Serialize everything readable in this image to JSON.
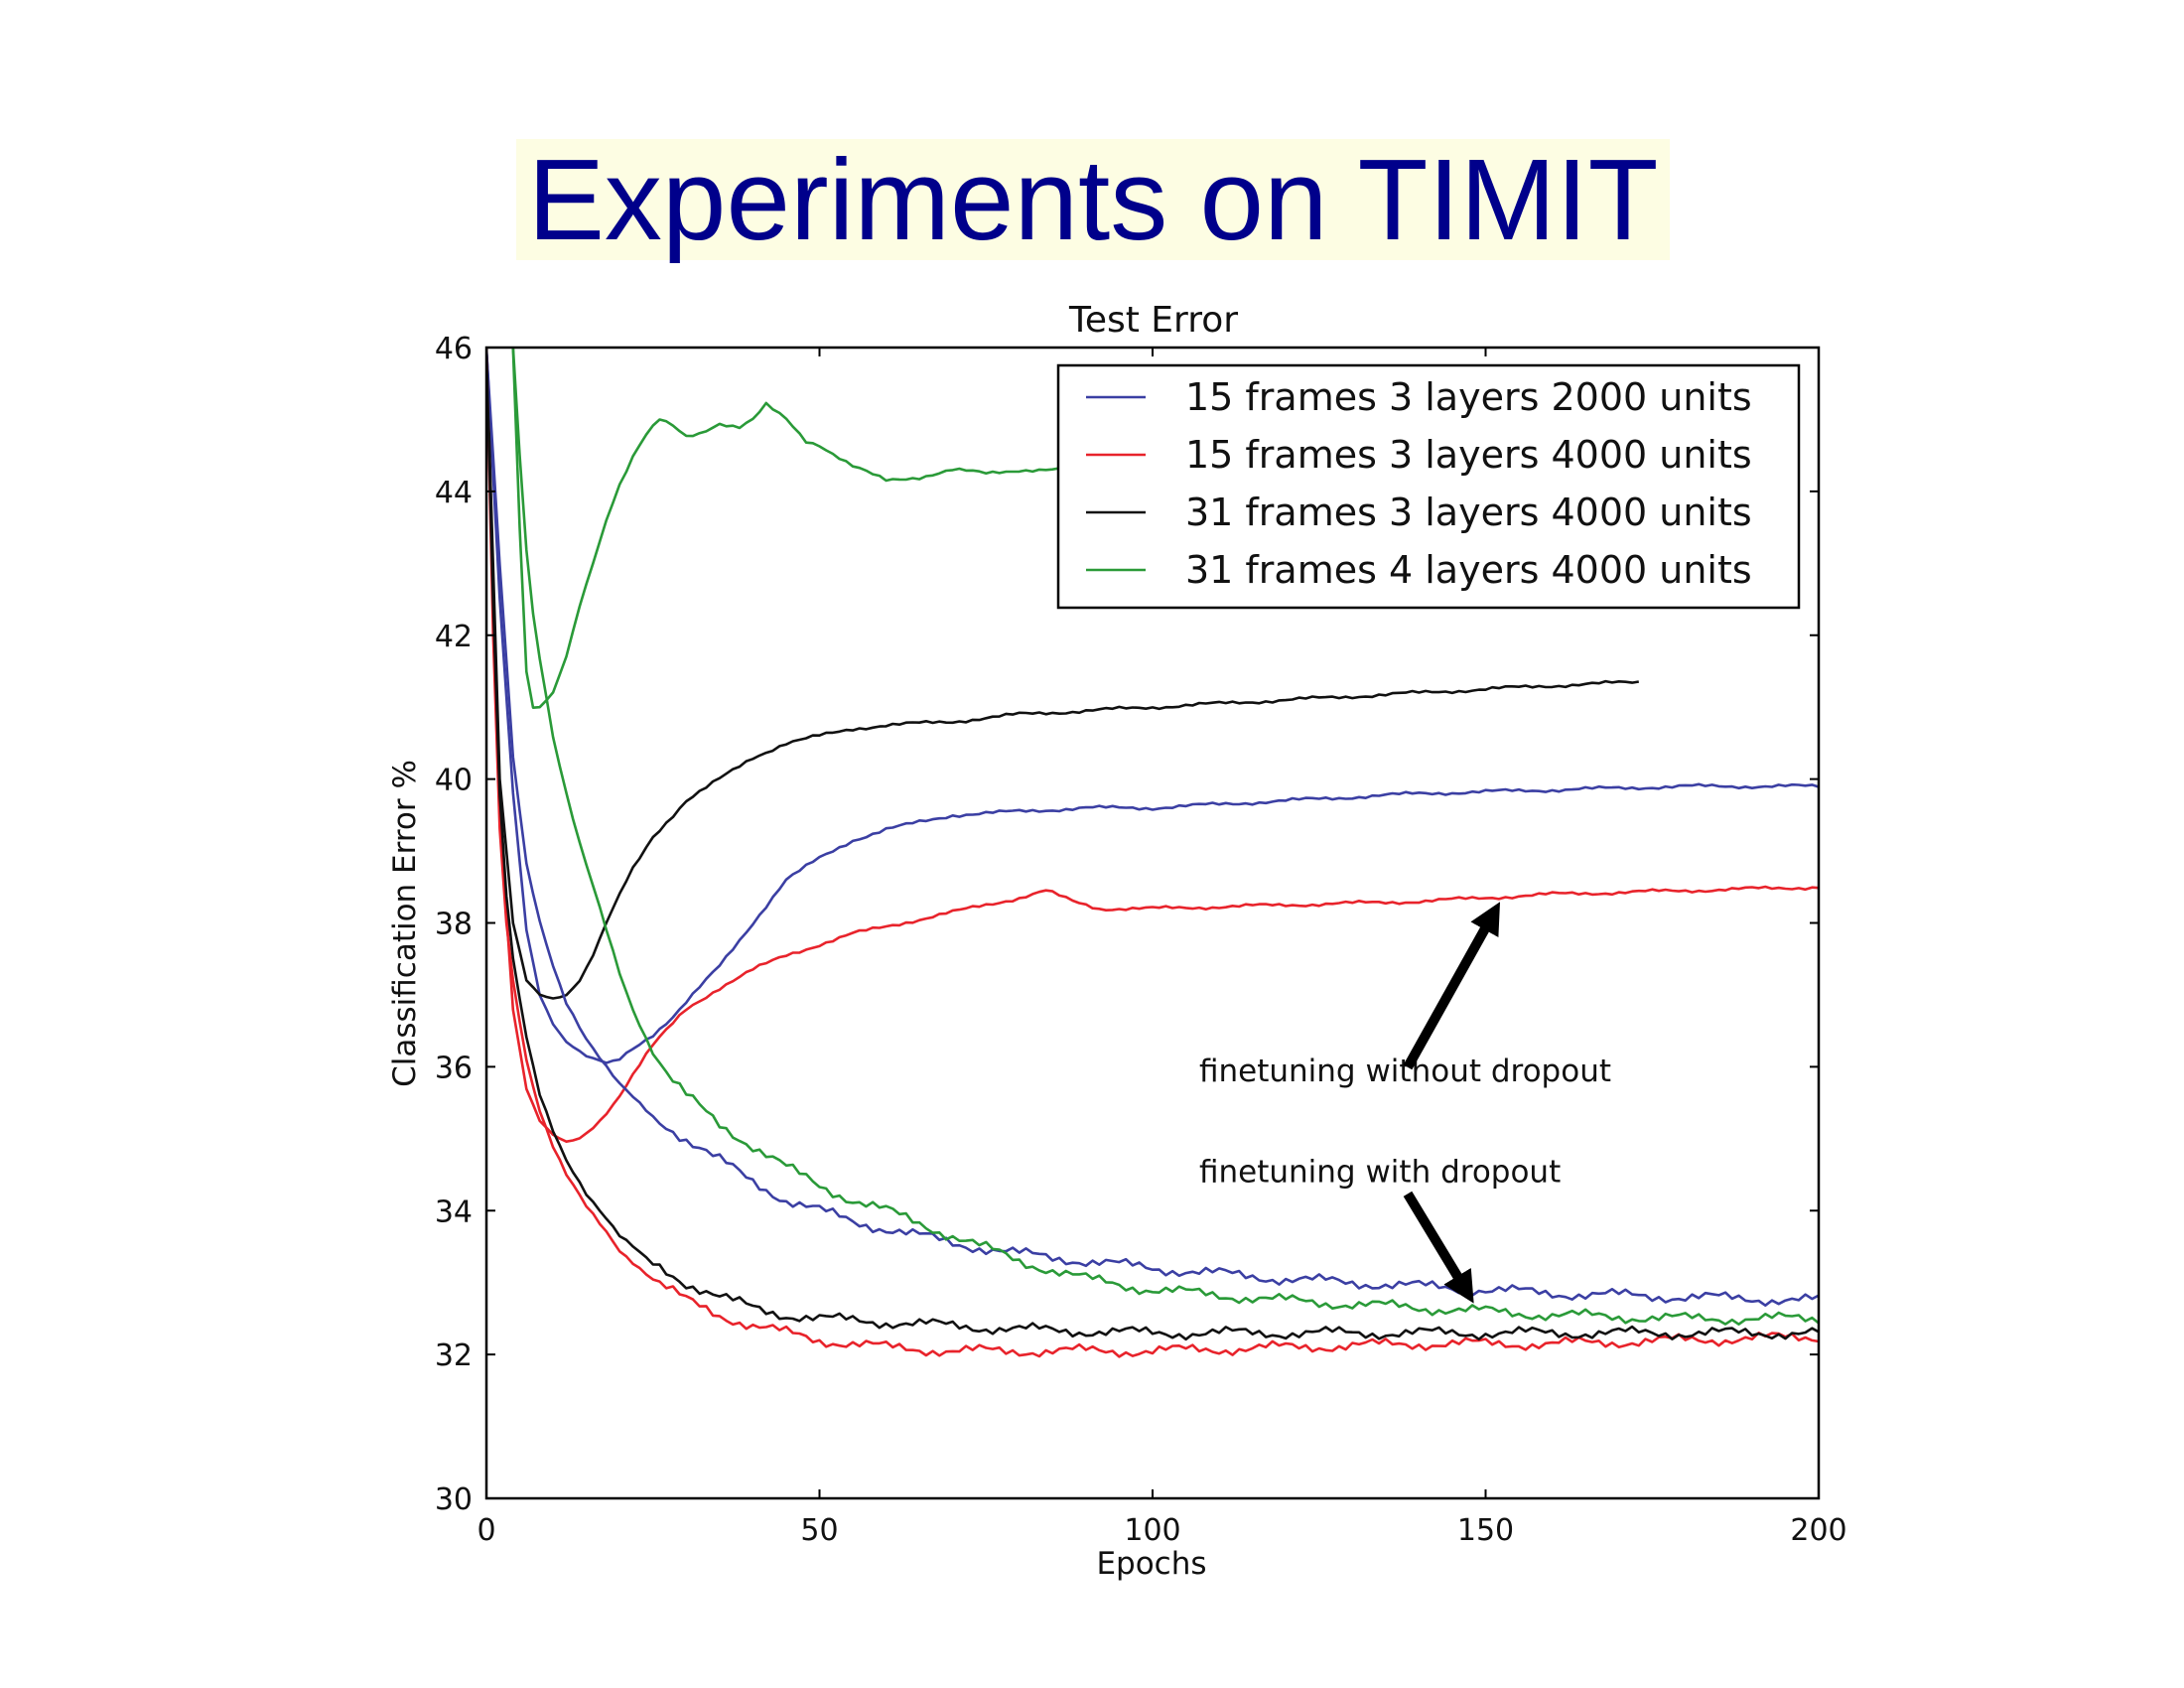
{
  "slide": {
    "title": "Experiments on TIMIT"
  },
  "chart_data": {
    "type": "line",
    "title": "Test Error",
    "xlabel": "Epochs",
    "ylabel": "Classification Error %",
    "xlim": [
      0,
      200
    ],
    "ylim": [
      30,
      46
    ],
    "xticks": [
      0,
      50,
      100,
      150,
      200
    ],
    "yticks": [
      30,
      32,
      34,
      36,
      38,
      40,
      42,
      44,
      46
    ],
    "grid": false,
    "legend_position": "top-right",
    "series": [
      {
        "name": "15 frames 3 layers 2000 units",
        "color": "#3b3fa3",
        "finetuning": "without dropout",
        "x": [
          0,
          2,
          4,
          6,
          8,
          10,
          12,
          15,
          18,
          20,
          22,
          25,
          28,
          30,
          35,
          40,
          45,
          50,
          55,
          60,
          65,
          70,
          80,
          90,
          100,
          120,
          140,
          160,
          180,
          200
        ],
        "y": [
          46,
          42.5,
          39.8,
          37.9,
          37.0,
          36.6,
          36.35,
          36.15,
          36.05,
          36.1,
          36.25,
          36.45,
          36.7,
          36.9,
          37.4,
          38.0,
          38.6,
          38.9,
          39.15,
          39.3,
          39.4,
          39.5,
          39.55,
          39.6,
          39.6,
          39.7,
          39.8,
          39.85,
          39.9,
          39.9
        ]
      },
      {
        "name": "15 frames 3 layers 4000 units",
        "color": "#e8232b",
        "finetuning": "without dropout",
        "x": [
          0,
          2,
          4,
          6,
          8,
          10,
          12,
          14,
          16,
          18,
          20,
          22,
          25,
          28,
          30,
          35,
          40,
          45,
          50,
          55,
          60,
          70,
          80,
          84,
          88,
          92,
          100,
          120,
          140,
          160,
          180,
          200
        ],
        "y": [
          46,
          39.5,
          36.8,
          35.7,
          35.25,
          35.05,
          34.95,
          35.0,
          35.15,
          35.35,
          35.6,
          35.9,
          36.3,
          36.6,
          36.8,
          37.1,
          37.35,
          37.55,
          37.7,
          37.85,
          37.95,
          38.15,
          38.35,
          38.45,
          38.3,
          38.2,
          38.2,
          38.25,
          38.3,
          38.4,
          38.45,
          38.5
        ]
      },
      {
        "name": "31 frames 3 layers 4000 units",
        "color": "#111111",
        "finetuning": "without dropout",
        "x": [
          0,
          2,
          4,
          6,
          8,
          10,
          12,
          14,
          16,
          18,
          20,
          22,
          25,
          28,
          30,
          35,
          40,
          45,
          50,
          55,
          60,
          70,
          80,
          90,
          100,
          120,
          140,
          160,
          173
        ],
        "y": [
          46,
          40.0,
          38.0,
          37.2,
          37.0,
          36.95,
          37.0,
          37.2,
          37.55,
          38.0,
          38.4,
          38.75,
          39.2,
          39.5,
          39.7,
          40.0,
          40.3,
          40.5,
          40.6,
          40.7,
          40.75,
          40.8,
          40.9,
          40.95,
          41.0,
          41.1,
          41.2,
          41.3,
          41.35
        ]
      },
      {
        "name": "31 frames 4 layers 4000 units",
        "color": "#2a9a38",
        "finetuning": "without dropout",
        "x": [
          4,
          5,
          6,
          7,
          8,
          10,
          12,
          14,
          16,
          18,
          20,
          22,
          24,
          26,
          28,
          30,
          32,
          35,
          38,
          40,
          42,
          45,
          48,
          50,
          55,
          60,
          65,
          70,
          75,
          80,
          85,
          89
        ],
        "y": [
          46,
          43.5,
          41.5,
          41.0,
          41.0,
          41.2,
          41.7,
          42.4,
          43.0,
          43.6,
          44.1,
          44.5,
          44.8,
          45.0,
          44.9,
          44.75,
          44.8,
          44.95,
          44.9,
          45.0,
          45.2,
          45.0,
          44.7,
          44.65,
          44.35,
          44.15,
          44.2,
          44.3,
          44.25,
          44.3,
          44.3,
          44.3
        ]
      },
      {
        "name": "",
        "color": "#3b3fa3",
        "finetuning": "with dropout",
        "x": [
          0,
          2,
          4,
          6,
          8,
          10,
          12,
          15,
          18,
          20,
          25,
          30,
          35,
          40,
          45,
          50,
          55,
          60,
          70,
          80,
          90,
          100,
          120,
          140,
          160,
          180,
          200
        ],
        "y": [
          46,
          43.0,
          40.3,
          38.8,
          38.0,
          37.4,
          36.9,
          36.4,
          36.0,
          35.75,
          35.3,
          35.0,
          34.7,
          34.4,
          34.15,
          34.0,
          33.85,
          33.75,
          33.55,
          33.4,
          33.3,
          33.2,
          33.05,
          32.95,
          32.85,
          32.8,
          32.75
        ]
      },
      {
        "name": "",
        "color": "#e8232b",
        "finetuning": "with dropout",
        "x": [
          0,
          1,
          2,
          3,
          4,
          6,
          8,
          10,
          12,
          15,
          18,
          20,
          25,
          30,
          35,
          40,
          45,
          50,
          60,
          70,
          80,
          100,
          120,
          140,
          160,
          180,
          200
        ],
        "y": [
          46,
          42.0,
          39.3,
          38.0,
          37.2,
          36.1,
          35.4,
          34.9,
          34.5,
          34.05,
          33.7,
          33.45,
          33.05,
          32.75,
          32.55,
          32.4,
          32.3,
          32.2,
          32.1,
          32.05,
          32.05,
          32.05,
          32.1,
          32.15,
          32.15,
          32.2,
          32.25
        ]
      },
      {
        "name": "",
        "color": "#111111",
        "finetuning": "with dropout",
        "x": [
          0,
          1,
          2,
          3,
          4,
          6,
          8,
          10,
          12,
          15,
          18,
          20,
          25,
          30,
          35,
          40,
          45,
          50,
          60,
          70,
          80,
          100,
          120,
          140,
          160,
          180,
          200
        ],
        "y": [
          46,
          42.5,
          39.8,
          38.4,
          37.5,
          36.4,
          35.6,
          35.1,
          34.7,
          34.25,
          33.9,
          33.65,
          33.25,
          33.0,
          32.8,
          32.65,
          32.55,
          32.5,
          32.45,
          32.4,
          32.35,
          32.3,
          32.3,
          32.3,
          32.3,
          32.3,
          32.3
        ]
      },
      {
        "name": "",
        "color": "#2a9a38",
        "finetuning": "with dropout",
        "x": [
          4,
          5,
          6,
          7,
          8,
          10,
          12,
          14,
          16,
          18,
          20,
          22,
          25,
          28,
          30,
          35,
          40,
          45,
          50,
          55,
          60,
          70,
          80,
          90,
          100,
          120,
          140,
          160,
          180,
          200
        ],
        "y": [
          46,
          44.5,
          43.2,
          42.3,
          41.7,
          40.6,
          39.8,
          39.1,
          38.5,
          37.9,
          37.3,
          36.8,
          36.2,
          35.8,
          35.6,
          35.2,
          34.9,
          34.6,
          34.35,
          34.15,
          34.0,
          33.65,
          33.3,
          33.05,
          32.9,
          32.75,
          32.65,
          32.55,
          32.5,
          32.5
        ]
      }
    ],
    "legend": [
      {
        "label": "15 frames 3 layers 2000 units",
        "color": "#3b3fa3"
      },
      {
        "label": "15 frames 3 layers 4000 units",
        "color": "#e8232b"
      },
      {
        "label": "31 frames 3 layers 4000 units",
        "color": "#111111"
      },
      {
        "label": "31 frames 4 layers 4000 units",
        "color": "#2a9a38"
      }
    ],
    "annotations": [
      {
        "text": "finetuning without dropout",
        "at": [
          107,
          35.8
        ],
        "arrow_to": [
          151,
          38.1
        ]
      },
      {
        "text": "finetuning with dropout",
        "at": [
          107,
          34.4
        ],
        "arrow_to": [
          147,
          32.9
        ]
      }
    ]
  }
}
